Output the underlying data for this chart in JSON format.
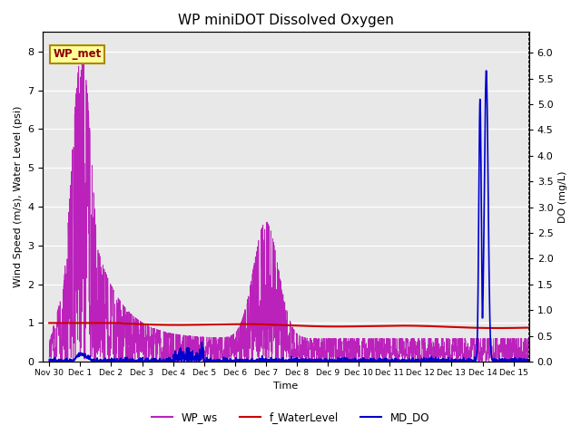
{
  "title": "WP miniDOT Dissolved Oxygen",
  "ylabel_left": "Wind Speed (m/s), Water Level (psi)",
  "ylabel_right": "DO (mg/L)",
  "xlabel": "Time",
  "annotation_text": "WP_met",
  "annotation_bg": "#FFFF99",
  "annotation_border": "#AA8800",
  "xlim_days": [
    -0.2,
    15.5
  ],
  "ylim_left": [
    0,
    8.5
  ],
  "ylim_right": [
    0,
    6.4
  ],
  "yticks_left": [
    0.0,
    1.0,
    2.0,
    3.0,
    4.0,
    5.0,
    6.0,
    7.0,
    8.0
  ],
  "yticks_right": [
    0.0,
    0.5,
    1.0,
    1.5,
    2.0,
    2.5,
    3.0,
    3.5,
    4.0,
    4.5,
    5.0,
    5.5,
    6.0
  ],
  "xtick_positions": [
    0,
    1,
    2,
    3,
    4,
    5,
    6,
    7,
    8,
    9,
    10,
    11,
    12,
    13,
    14,
    15
  ],
  "xtick_labels": [
    "Nov 30",
    "Dec 1",
    "Dec 2",
    "Dec 3",
    "Dec 4",
    "Dec 5",
    "Dec 6",
    "Dec 7",
    "Dec 8",
    "Dec 9",
    "Dec 10",
    "Dec 11",
    "Dec 12",
    "Dec 13",
    "Dec 14",
    "Dec 15"
  ],
  "color_ws": "#BB22BB",
  "color_wl": "#CC0000",
  "color_do": "#0000CC",
  "bg_color": "#E8E8E8",
  "legend_labels": [
    "WP_ws",
    "f_WaterLevel",
    "MD_DO"
  ],
  "legend_colors": [
    "#BB22BB",
    "#CC0000",
    "#0000CC"
  ],
  "title_fontsize": 11,
  "label_fontsize": 8,
  "tick_fontsize": 8
}
